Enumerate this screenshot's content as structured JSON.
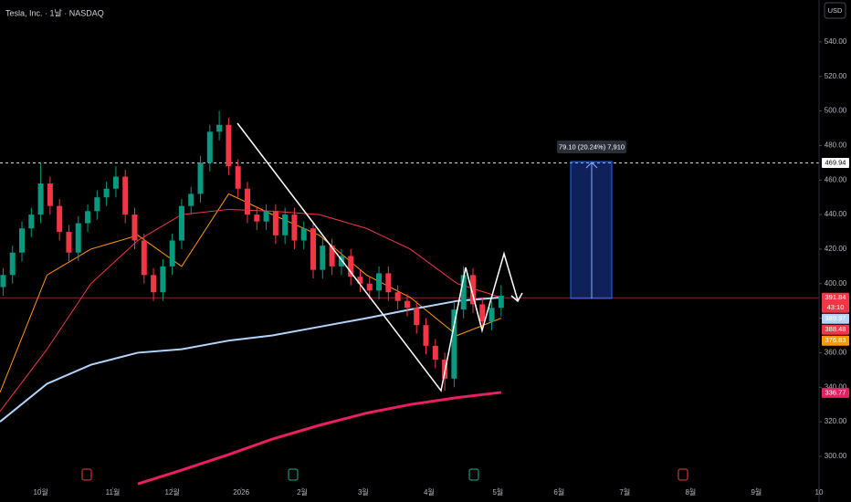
{
  "chart_data": {
    "type": "candlestick",
    "title": "Tesla, Inc. · 1날 · NASDAQ",
    "currency": "USD",
    "xlim": [
      0,
      261.5
    ],
    "xticks": [
      {
        "value": 13,
        "label": "10월"
      },
      {
        "value": 36,
        "label": "11월"
      },
      {
        "value": 55,
        "label": "12월"
      },
      {
        "value": 77,
        "label": "2026"
      },
      {
        "value": 96.5,
        "label": "2월"
      },
      {
        "value": 116,
        "label": "3월"
      },
      {
        "value": 137,
        "label": "4월"
      },
      {
        "value": 159,
        "label": "5월"
      },
      {
        "value": 178.5,
        "label": "6월"
      },
      {
        "value": 199.5,
        "label": "7월"
      },
      {
        "value": 220.5,
        "label": "8월"
      },
      {
        "value": 241.5,
        "label": "9월"
      },
      {
        "value": 261.5,
        "label": "10"
      }
    ],
    "ylim": [
      284.1,
      564.3
    ],
    "yticks": [
      {
        "value": 300,
        "label": "300.00"
      },
      {
        "value": 320,
        "label": "320.00"
      },
      {
        "value": 340,
        "label": "340.00"
      },
      {
        "value": 360,
        "label": "360.00"
      },
      {
        "value": 380,
        "label": "380.00"
      },
      {
        "value": 400,
        "label": "400.00"
      },
      {
        "value": 420,
        "label": "420.00"
      },
      {
        "value": 440,
        "label": "440.00"
      },
      {
        "value": 460,
        "label": "460.00"
      },
      {
        "value": 480,
        "label": "480.00"
      },
      {
        "value": 500,
        "label": "500.00"
      },
      {
        "value": 520,
        "label": "520.00"
      },
      {
        "value": 540,
        "label": "540.00"
      }
    ],
    "up_color": "#089981",
    "down_color": "#f23645",
    "x": [
      1,
      4,
      7,
      10,
      13,
      16,
      19,
      22,
      25,
      28,
      31,
      34,
      37,
      40,
      43,
      46,
      49,
      52,
      55,
      58,
      61,
      64,
      67,
      70,
      73,
      76,
      79,
      82,
      85,
      88,
      91,
      94,
      97,
      100,
      103,
      106,
      109,
      112,
      115,
      118,
      121,
      124,
      127,
      130,
      133,
      136,
      139,
      142,
      145,
      148,
      151,
      154,
      157,
      160
    ],
    "open": [
      398,
      405,
      418,
      432,
      440,
      458,
      445,
      430,
      418,
      435,
      442,
      450,
      455,
      462,
      440,
      425,
      405,
      395,
      410,
      425,
      445,
      452,
      470,
      488,
      492,
      468,
      455,
      440,
      436,
      442,
      428,
      440,
      425,
      432,
      408,
      422,
      410,
      416,
      404,
      400,
      396,
      406,
      395,
      390,
      386,
      376,
      364,
      356,
      345,
      385,
      405,
      388,
      378,
      386
    ],
    "high": [
      409,
      422,
      436,
      444,
      470,
      462,
      449,
      434,
      439,
      446,
      454,
      459,
      468,
      466,
      444,
      429,
      409,
      414,
      429,
      449,
      456,
      474,
      492,
      500,
      496,
      472,
      459,
      444,
      446,
      446,
      444,
      444,
      436,
      436,
      426,
      426,
      420,
      420,
      408,
      404,
      410,
      410,
      399,
      394,
      390,
      380,
      368,
      360,
      389,
      410,
      409,
      392,
      390,
      399
    ],
    "low": [
      393,
      400,
      413,
      427,
      435,
      440,
      425,
      413,
      413,
      430,
      437,
      445,
      450,
      435,
      420,
      400,
      390,
      390,
      405,
      420,
      440,
      447,
      465,
      483,
      463,
      450,
      435,
      431,
      431,
      423,
      423,
      420,
      420,
      403,
      403,
      405,
      405,
      399,
      395,
      391,
      391,
      390,
      385,
      381,
      371,
      359,
      351,
      338,
      340,
      380,
      383,
      373,
      373,
      381
    ],
    "close": [
      405,
      418,
      432,
      440,
      458,
      445,
      430,
      418,
      435,
      442,
      450,
      455,
      462,
      440,
      425,
      405,
      395,
      410,
      425,
      445,
      452,
      470,
      488,
      492,
      468,
      455,
      440,
      436,
      442,
      428,
      440,
      425,
      432,
      408,
      422,
      410,
      416,
      404,
      400,
      396,
      406,
      395,
      390,
      386,
      376,
      364,
      356,
      345,
      385,
      405,
      388,
      378,
      386,
      393
    ],
    "series": [
      {
        "color": "#ff9800",
        "width": 1,
        "x": [
          0,
          15,
          29,
          44,
          58,
          73,
          87,
          102,
          117,
          131,
          146,
          160
        ],
        "values": [
          337,
          405,
          420,
          428,
          410,
          452,
          440,
          428,
          405,
          392,
          370,
          380
        ],
        "last": 376.83
      },
      {
        "color": "#f23645",
        "width": 1,
        "x": [
          0,
          15,
          29,
          44,
          58,
          73,
          87,
          102,
          117,
          131,
          146,
          160
        ],
        "values": [
          326,
          362,
          400,
          425,
          440,
          443,
          442,
          440,
          432,
          420,
          400,
          392
        ],
        "last": 388.48
      },
      {
        "color": "#b3d4fc",
        "width": 2,
        "x": [
          0,
          15,
          29,
          44,
          58,
          73,
          87,
          102,
          117,
          131,
          146,
          160
        ],
        "values": [
          320,
          342,
          353,
          360,
          362,
          367,
          370,
          375,
          380,
          385,
          390,
          392
        ],
        "last": 389.97
      },
      {
        "color": "#e91e63",
        "width": 3,
        "x": [
          0,
          15,
          29,
          44,
          58,
          73,
          87,
          102,
          117,
          131,
          146,
          160
        ],
        "values": [
          null,
          null,
          null,
          284,
          292,
          301,
          310,
          318,
          325,
          330,
          334,
          337
        ],
        "last": 336.77
      }
    ],
    "last_price": {
      "value": 391.84,
      "countdown": "43:10",
      "color": "#f23645"
    },
    "hline": 469.94,
    "position_label": "79.10 (20.24%) 7,910"
  }
}
